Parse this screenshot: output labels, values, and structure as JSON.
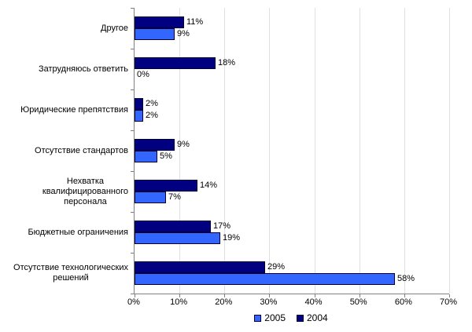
{
  "chart_data": {
    "type": "bar",
    "orientation": "horizontal",
    "title": "",
    "xlabel": "",
    "ylabel": "",
    "xlim": [
      0,
      70
    ],
    "x_ticks": [
      "0%",
      "10%",
      "20%",
      "30%",
      "40%",
      "50%",
      "60%",
      "70%"
    ],
    "grid": true,
    "legend_position": "bottom",
    "categories": [
      "Другое",
      "Затрудняюсь ответить",
      "Юридические препятствия",
      "Отсутствие стандартов",
      "Нехватка квалифицированного персонала",
      "Бюджетные ограничения",
      "Отсутствие технологических решений"
    ],
    "category_label_lines": [
      [
        "Другое"
      ],
      [
        "Затрудняюсь ответить"
      ],
      [
        "Юридические препятствия"
      ],
      [
        "Отсутствие стандартов"
      ],
      [
        "Нехватка",
        "квалифицированного",
        "персонала"
      ],
      [
        "Бюджетные ограничения"
      ],
      [
        "Отсутствие технологических",
        "решений"
      ]
    ],
    "series": [
      {
        "name": "2004",
        "color": "#000080",
        "values": [
          11,
          18,
          2,
          9,
          14,
          17,
          29
        ]
      },
      {
        "name": "2005",
        "color": "#3366FF",
        "values": [
          9,
          0,
          2,
          5,
          7,
          19,
          58
        ]
      }
    ],
    "data_labels": {
      "2004": [
        "11%",
        "18%",
        "2%",
        "9%",
        "14%",
        "17%",
        "29%"
      ],
      "2005": [
        "9%",
        "0%",
        "2%",
        "5%",
        "7%",
        "19%",
        "58%"
      ]
    },
    "legend": [
      {
        "label": "2005",
        "color": "#3366FF"
      },
      {
        "label": "2004",
        "color": "#000080"
      }
    ],
    "colors": {
      "bar_border": "#000033",
      "gridline": "#E0E0E0",
      "axis": "#808080",
      "text": "#000000"
    }
  }
}
